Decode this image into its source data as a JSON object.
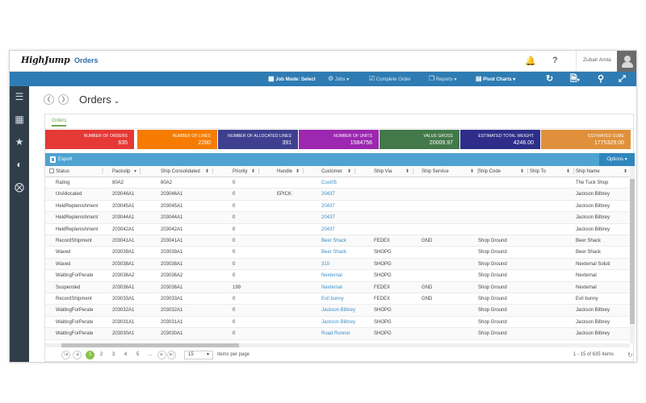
{
  "header": {
    "logo": "HighJump",
    "title": "Orders",
    "user": "Zubair Amla"
  },
  "toolbar": {
    "job_mode": "Job Mode: Select",
    "jobs": "Jobs",
    "complete_order": "Complete Order",
    "reports": "Reports",
    "pivot_charts": "Pivot Charts"
  },
  "page": {
    "title": "Orders",
    "tab": "Orders"
  },
  "kpis": [
    {
      "label": "Number of Orders",
      "value": "635",
      "color": "#e53935"
    },
    {
      "label": "Number of Lines",
      "value": "2280",
      "color": "#f57c00"
    },
    {
      "label": "Number of Allocated Lines",
      "value": "391",
      "color": "#3f3f8f"
    },
    {
      "label": "Number of Units",
      "value": "1584756",
      "color": "#9c27b0"
    },
    {
      "label": "Value Gross",
      "value": "20009.97",
      "color": "#43794a"
    },
    {
      "label": "Estimated Total Weight",
      "value": "4246.00",
      "color": "#2e2e8a"
    },
    {
      "label": "Estimated Cube",
      "value": "1775329.00",
      "color": "#e0903a"
    }
  ],
  "actions": {
    "export": "Export",
    "options": "Options"
  },
  "table": {
    "columns": [
      "Status",
      "Packslip",
      "Ship Consolidated",
      "Priority",
      "Handle",
      "Customer",
      "Ship Via",
      "Ship Service",
      "Ship Code",
      "Ship To",
      "Ship Name"
    ],
    "rows": [
      [
        "Rating",
        "80A2",
        "80A2",
        "0",
        "",
        "Cust05",
        "",
        "",
        "",
        "",
        "The Tuck Shop"
      ],
      [
        "UnAllocated",
        "203046A1",
        "203046A1",
        "0",
        "EPICK",
        "20437",
        "",
        "",
        "",
        "",
        "Jackson Bilbrey"
      ],
      [
        "HeldReplenishment",
        "203045A1",
        "203045A1",
        "0",
        "",
        "20437",
        "",
        "",
        "",
        "",
        "Jackson Bilbrey"
      ],
      [
        "HeldReplenishment",
        "203044A1",
        "203044A1",
        "0",
        "",
        "20437",
        "",
        "",
        "",
        "",
        "Jackson Bilbrey"
      ],
      [
        "HeldReplenishment",
        "203042A1",
        "203042A1",
        "0",
        "",
        "20437",
        "",
        "",
        "",
        "",
        "Jackson Bilbrey"
      ],
      [
        "RecordShipment",
        "203041A1",
        "203041A1",
        "0",
        "",
        "Beer Shack",
        "FEDEX",
        "GND",
        "Shop Ground",
        "",
        "Beer Shack"
      ],
      [
        "Waved",
        "203039A1",
        "203039A1",
        "0",
        "",
        "Beer Shack",
        "SHOPG",
        "",
        "Shop Ground",
        "",
        "Beer Shack"
      ],
      [
        "Waved",
        "203038A1",
        "203038A1",
        "0",
        "",
        "310",
        "SHOPG",
        "",
        "Shop Ground",
        "",
        "Nexternal Soluti"
      ],
      [
        "WaitingForPerate",
        "203036A2",
        "203036A2",
        "0",
        "",
        "Nexternal",
        "SHOPG",
        "",
        "Shop Ground",
        "",
        "Nexternal"
      ],
      [
        "Suspended",
        "203036A1",
        "203036A1",
        "199",
        "",
        "Nexternal",
        "FEDEX",
        "GND",
        "Shop Ground",
        "",
        "Nexternal"
      ],
      [
        "RecordShipment",
        "203033A1",
        "203033A1",
        "0",
        "",
        "Evil bunny",
        "FEDEX",
        "GND",
        "Shop Ground",
        "",
        "Evil bunny"
      ],
      [
        "WaitingForPerate",
        "203032A1",
        "203032A1",
        "0",
        "",
        "Jackson Bilbrey",
        "SHOPG",
        "",
        "Shop Ground",
        "",
        "Jackson Bilbrey"
      ],
      [
        "WaitingForPerate",
        "203031A1",
        "203031A1",
        "0",
        "",
        "Jackson Bilbrey",
        "SHOPG",
        "",
        "Shop Ground",
        "",
        "Jackson Bilbrey"
      ],
      [
        "WaitingForPerate",
        "203030A1",
        "203030A1",
        "0",
        "",
        "Road Runner",
        "SHOPG",
        "",
        "Shop Ground",
        "",
        "Jackson Bilbrey"
      ]
    ]
  },
  "pager": {
    "pages": [
      "1",
      "2",
      "3",
      "4",
      "5",
      "..."
    ],
    "page_size": "15",
    "items_per_page": "Items per page",
    "summary": "1 - 15 of 635 Items"
  }
}
